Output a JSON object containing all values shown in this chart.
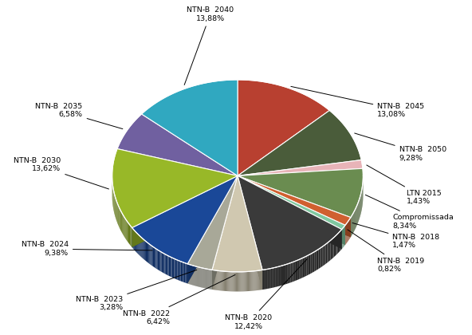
{
  "label_names": [
    "NTN-B  2045",
    "NTN-B  2050",
    "LTN 2015",
    "Compromissada",
    "NTN-B  2018",
    "NTN-B  2019",
    "NTN-B  2020",
    "NTN-B  2022",
    "NTN-B  2023",
    "NTN-B  2024",
    "NTN-B  2030",
    "NTN-B  2035",
    "NTN-B  2040"
  ],
  "label_pcts": [
    "13,08%",
    "9,28%",
    "1,43%",
    "8,34%",
    "1,47%",
    "0,82%",
    "12,42%",
    "6,42%",
    "3,28%",
    "9,38%",
    "13,62%",
    "6,58%",
    "13,88%"
  ],
  "values": [
    13.08,
    9.28,
    1.43,
    8.34,
    1.47,
    0.82,
    12.42,
    6.42,
    3.28,
    9.38,
    13.62,
    6.58,
    13.88
  ],
  "colors": [
    "#b84030",
    "#4a5c3a",
    "#e8b4b8",
    "#6a8c50",
    "#d06030",
    "#80c8a0",
    "#3a3a3a",
    "#d0c8b0",
    "#a8a898",
    "#1a4898",
    "#98b828",
    "#7060a0",
    "#30a8c0"
  ],
  "background_color": "#ffffff",
  "startangle": 90,
  "label_positions": [
    [
      1.28,
      0.52,
      "left"
    ],
    [
      1.48,
      0.12,
      "left"
    ],
    [
      1.55,
      -0.28,
      "left"
    ],
    [
      1.42,
      -0.5,
      "left"
    ],
    [
      1.42,
      -0.68,
      "left"
    ],
    [
      1.28,
      -0.9,
      "left"
    ],
    [
      0.1,
      -1.42,
      "center"
    ],
    [
      -0.62,
      -1.38,
      "right"
    ],
    [
      -1.05,
      -1.25,
      "right"
    ],
    [
      -1.55,
      -0.75,
      "right"
    ],
    [
      -1.62,
      0.02,
      "right"
    ],
    [
      -1.42,
      0.52,
      "right"
    ],
    [
      -0.25,
      1.4,
      "center"
    ]
  ]
}
